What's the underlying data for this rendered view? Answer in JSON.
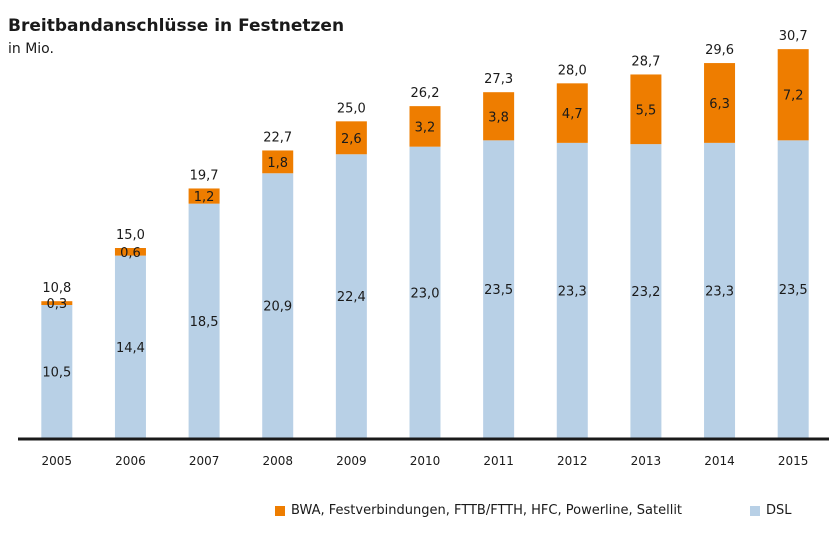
{
  "colors": {
    "dsl": "#b8d0e6",
    "other": "#ee7d00",
    "axis": "#1a1a1a"
  },
  "chart_data": {
    "type": "bar",
    "stacked": true,
    "title": "Breitbandanschlüsse in Festnetzen",
    "subtitle": "in Mio.",
    "categories": [
      "2005",
      "2006",
      "2007",
      "2008",
      "2009",
      "2010",
      "2011",
      "2012",
      "2013",
      "2014",
      "2015"
    ],
    "series": [
      {
        "name": "DSL",
        "values": [
          10.5,
          14.4,
          18.5,
          20.9,
          22.4,
          23.0,
          23.5,
          23.3,
          23.2,
          23.3,
          23.5
        ],
        "labels": [
          "10,5",
          "14,4",
          "18,5",
          "20,9",
          "22,4",
          "23,0",
          "23,5",
          "23,3",
          "23,2",
          "23,3",
          "23,5"
        ]
      },
      {
        "name": "BWA, Festverbindungen, FTTB/FTTH, HFC, Powerline, Satellit",
        "values": [
          0.3,
          0.6,
          1.2,
          1.8,
          2.6,
          3.2,
          3.8,
          4.7,
          5.5,
          6.3,
          7.2
        ],
        "labels": [
          "0,3",
          "0,6",
          "1,2",
          "1,8",
          "2,6",
          "3,2",
          "3,8",
          "4,7",
          "5,5",
          "6,3",
          "7,2"
        ]
      }
    ],
    "totals": [
      "10,8",
      "15,0",
      "19,7",
      "22,7",
      "25,0",
      "26,2",
      "27,3",
      "28,0",
      "28,7",
      "29,6",
      "30,7"
    ],
    "ylim": [
      0,
      33
    ],
    "grid": false,
    "legend_position": "bottom"
  }
}
